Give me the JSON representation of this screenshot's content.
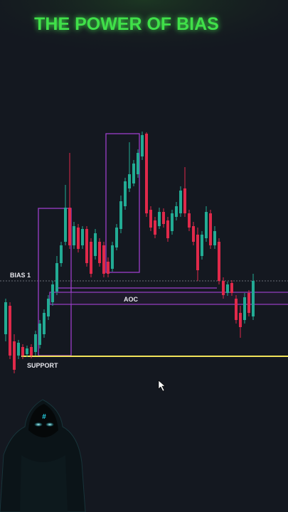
{
  "header": {
    "title": "THE POWER OF BIAS"
  },
  "labels": {
    "bias": "BIAS 1",
    "zone": "AOC",
    "support": "SUPPORT"
  }
}
